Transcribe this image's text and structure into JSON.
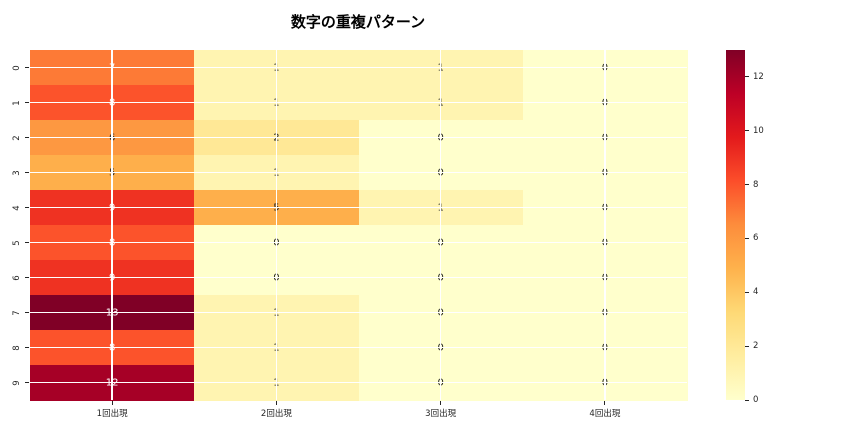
{
  "chart_data": {
    "type": "heatmap",
    "title": "数字の重複パターン",
    "row_labels": [
      "0",
      "1",
      "2",
      "3",
      "4",
      "5",
      "6",
      "7",
      "8",
      "9"
    ],
    "col_labels": [
      "1回出現",
      "2回出現",
      "3回出現",
      "4回出現"
    ],
    "values": [
      [
        7,
        1,
        1,
        0
      ],
      [
        8,
        1,
        1,
        0
      ],
      [
        6,
        2,
        0,
        0
      ],
      [
        5,
        1,
        0,
        0
      ],
      [
        9,
        5,
        1,
        0
      ],
      [
        8,
        0,
        0,
        0
      ],
      [
        9,
        0,
        0,
        0
      ],
      [
        13,
        1,
        0,
        0
      ],
      [
        8,
        1,
        0,
        0
      ],
      [
        12,
        1,
        0,
        0
      ]
    ],
    "vmin": 0,
    "vmax": 13,
    "colormap": "YlOrRd",
    "colorbar_ticks": [
      0,
      2,
      4,
      6,
      8,
      10,
      12
    ],
    "grid": true,
    "annotated": true,
    "annotation_colors": {
      "dark": "#262626",
      "light": "#ffffff"
    },
    "legend_position": "right-colorbar"
  }
}
